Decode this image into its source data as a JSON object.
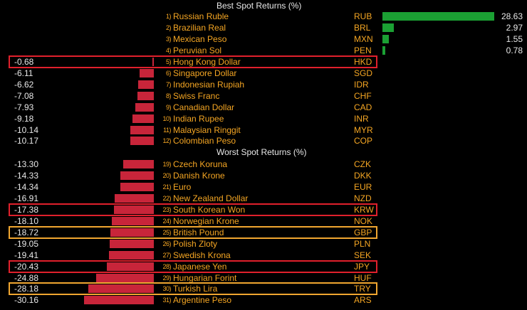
{
  "chart_data": {
    "type": "bar",
    "title": "Best Spot Returns (%)",
    "section_titles": {
      "best": "Best Spot Returns (%)",
      "worst": "Worst Spot Returns (%)"
    },
    "colors": {
      "positive": "#1ba033",
      "negative": "#c8253a",
      "label": "#f5a623",
      "value": "#e8e8e8"
    },
    "best": [
      {
        "rank": "1)",
        "name": "Russian Ruble",
        "code": "RUB",
        "value": 28.63,
        "label": "28.63"
      },
      {
        "rank": "2)",
        "name": "Brazilian Real",
        "code": "BRL",
        "value": 2.97,
        "label": "2.97"
      },
      {
        "rank": "3)",
        "name": "Mexican Peso",
        "code": "MXN",
        "value": 1.55,
        "label": "1.55"
      },
      {
        "rank": "4)",
        "name": "Peruvian Sol",
        "code": "PEN",
        "value": 0.78,
        "label": "0.78"
      },
      {
        "rank": "5)",
        "name": "Hong Kong Dollar",
        "code": "HKD",
        "value": -0.68,
        "label": "-0.68",
        "highlight": "red"
      },
      {
        "rank": "6)",
        "name": "Singapore Dollar",
        "code": "SGD",
        "value": -6.11,
        "label": "-6.11"
      },
      {
        "rank": "7)",
        "name": "Indonesian Rupiah",
        "code": "IDR",
        "value": -6.62,
        "label": "-6.62"
      },
      {
        "rank": "8)",
        "name": "Swiss Franc",
        "code": "CHF",
        "value": -7.08,
        "label": "-7.08"
      },
      {
        "rank": "9)",
        "name": "Canadian Dollar",
        "code": "CAD",
        "value": -7.93,
        "label": "-7.93"
      },
      {
        "rank": "10)",
        "name": "Indian Rupee",
        "code": "INR",
        "value": -9.18,
        "label": "-9.18"
      },
      {
        "rank": "11)",
        "name": "Malaysian Ringgit",
        "code": "MYR",
        "value": -10.14,
        "label": "-10.14"
      },
      {
        "rank": "12)",
        "name": "Colombian Peso",
        "code": "COP",
        "value": -10.17,
        "label": "-10.17"
      }
    ],
    "worst": [
      {
        "rank": "19)",
        "name": "Czech Koruna",
        "code": "CZK",
        "value": -13.3,
        "label": "-13.30"
      },
      {
        "rank": "20)",
        "name": "Danish Krone",
        "code": "DKK",
        "value": -14.33,
        "label": "-14.33"
      },
      {
        "rank": "21)",
        "name": "Euro",
        "code": "EUR",
        "value": -14.34,
        "label": "-14.34"
      },
      {
        "rank": "22)",
        "name": "New Zealand Dollar",
        "code": "NZD",
        "value": -16.91,
        "label": "-16.91"
      },
      {
        "rank": "23)",
        "name": "South Korean Won",
        "code": "KRW",
        "value": -17.38,
        "label": "-17.38",
        "highlight": "red"
      },
      {
        "rank": "24)",
        "name": "Norwegian Krone",
        "code": "NOK",
        "value": -18.1,
        "label": "-18.10"
      },
      {
        "rank": "25)",
        "name": "British Pound",
        "code": "GBP",
        "value": -18.72,
        "label": "-18.72",
        "highlight": "orange"
      },
      {
        "rank": "26)",
        "name": "Polish Zloty",
        "code": "PLN",
        "value": -19.05,
        "label": "-19.05"
      },
      {
        "rank": "27)",
        "name": "Swedish Krona",
        "code": "SEK",
        "value": -19.41,
        "label": "-19.41"
      },
      {
        "rank": "28)",
        "name": "Japanese Yen",
        "code": "JPY",
        "value": -20.43,
        "label": "-20.43",
        "highlight": "red"
      },
      {
        "rank": "29)",
        "name": "Hungarian Forint",
        "code": "HUF",
        "value": -24.88,
        "label": "-24.88"
      },
      {
        "rank": "30)",
        "name": "Turkish Lira",
        "code": "TRY",
        "value": -28.18,
        "label": "-28.18",
        "highlight": "orange"
      },
      {
        "rank": "31)",
        "name": "Argentine Peso",
        "code": "ARS",
        "value": -30.16,
        "label": "-30.16"
      }
    ]
  }
}
